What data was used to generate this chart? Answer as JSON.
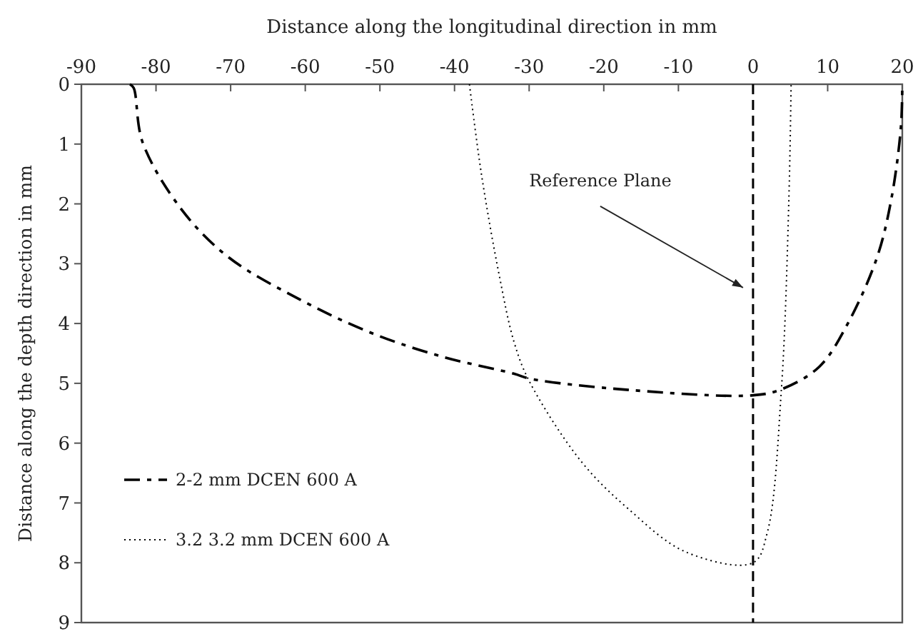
{
  "chart_data": {
    "type": "line",
    "xlabel": "Distance along the longitudinal direction in mm",
    "ylabel": "Distance along the depth direction in mm",
    "xlim": [
      -90,
      20
    ],
    "xticks": [
      -90,
      -80,
      -70,
      -60,
      -50,
      -40,
      -30,
      -20,
      -10,
      0,
      10,
      20
    ],
    "ylim": [
      9,
      0
    ],
    "yticks": [
      0,
      1,
      2,
      3,
      4,
      5,
      6,
      7,
      8,
      9
    ],
    "grid": false,
    "legend": "bottom left",
    "marker": "none",
    "series": [
      {
        "name": "2-2 mm DCEN 600 A",
        "color": "#000000",
        "line_style": "dashed",
        "x": [
          -83.5,
          -83,
          -81.8,
          -76.6,
          -70.3,
          -60.7,
          -51.1,
          -41.5,
          -32,
          -30,
          -16.7,
          0,
          3.8,
          8.9,
          12.7,
          16.6,
          18.5,
          19.8,
          20
        ],
        "values": [
          0,
          0.06,
          0.97,
          2.09,
          2.89,
          3.6,
          4.16,
          4.56,
          4.84,
          4.92,
          5.11,
          5.2,
          5.1,
          4.72,
          4,
          2.9,
          1.94,
          0.74,
          0
        ]
      },
      {
        "name": "3.2 3.2 mm DCEN 600 A",
        "color": "#000000",
        "line_style": "dotted",
        "x": [
          -38,
          -36.4,
          -34,
          -32,
          -30,
          -23,
          -16.7,
          -9,
          0,
          1.9,
          3.8,
          4.8,
          5.1
        ],
        "values": [
          0,
          1.5,
          3.2,
          4.32,
          4.96,
          6.31,
          7.1,
          7.82,
          8.0,
          7.5,
          5.1,
          1.93,
          0
        ]
      }
    ],
    "ref_lines": [
      {
        "axis": "x",
        "value": 0,
        "color": "#000000",
        "line_style": "dashed"
      }
    ],
    "annotations": [
      "Reference Plane"
    ]
  }
}
